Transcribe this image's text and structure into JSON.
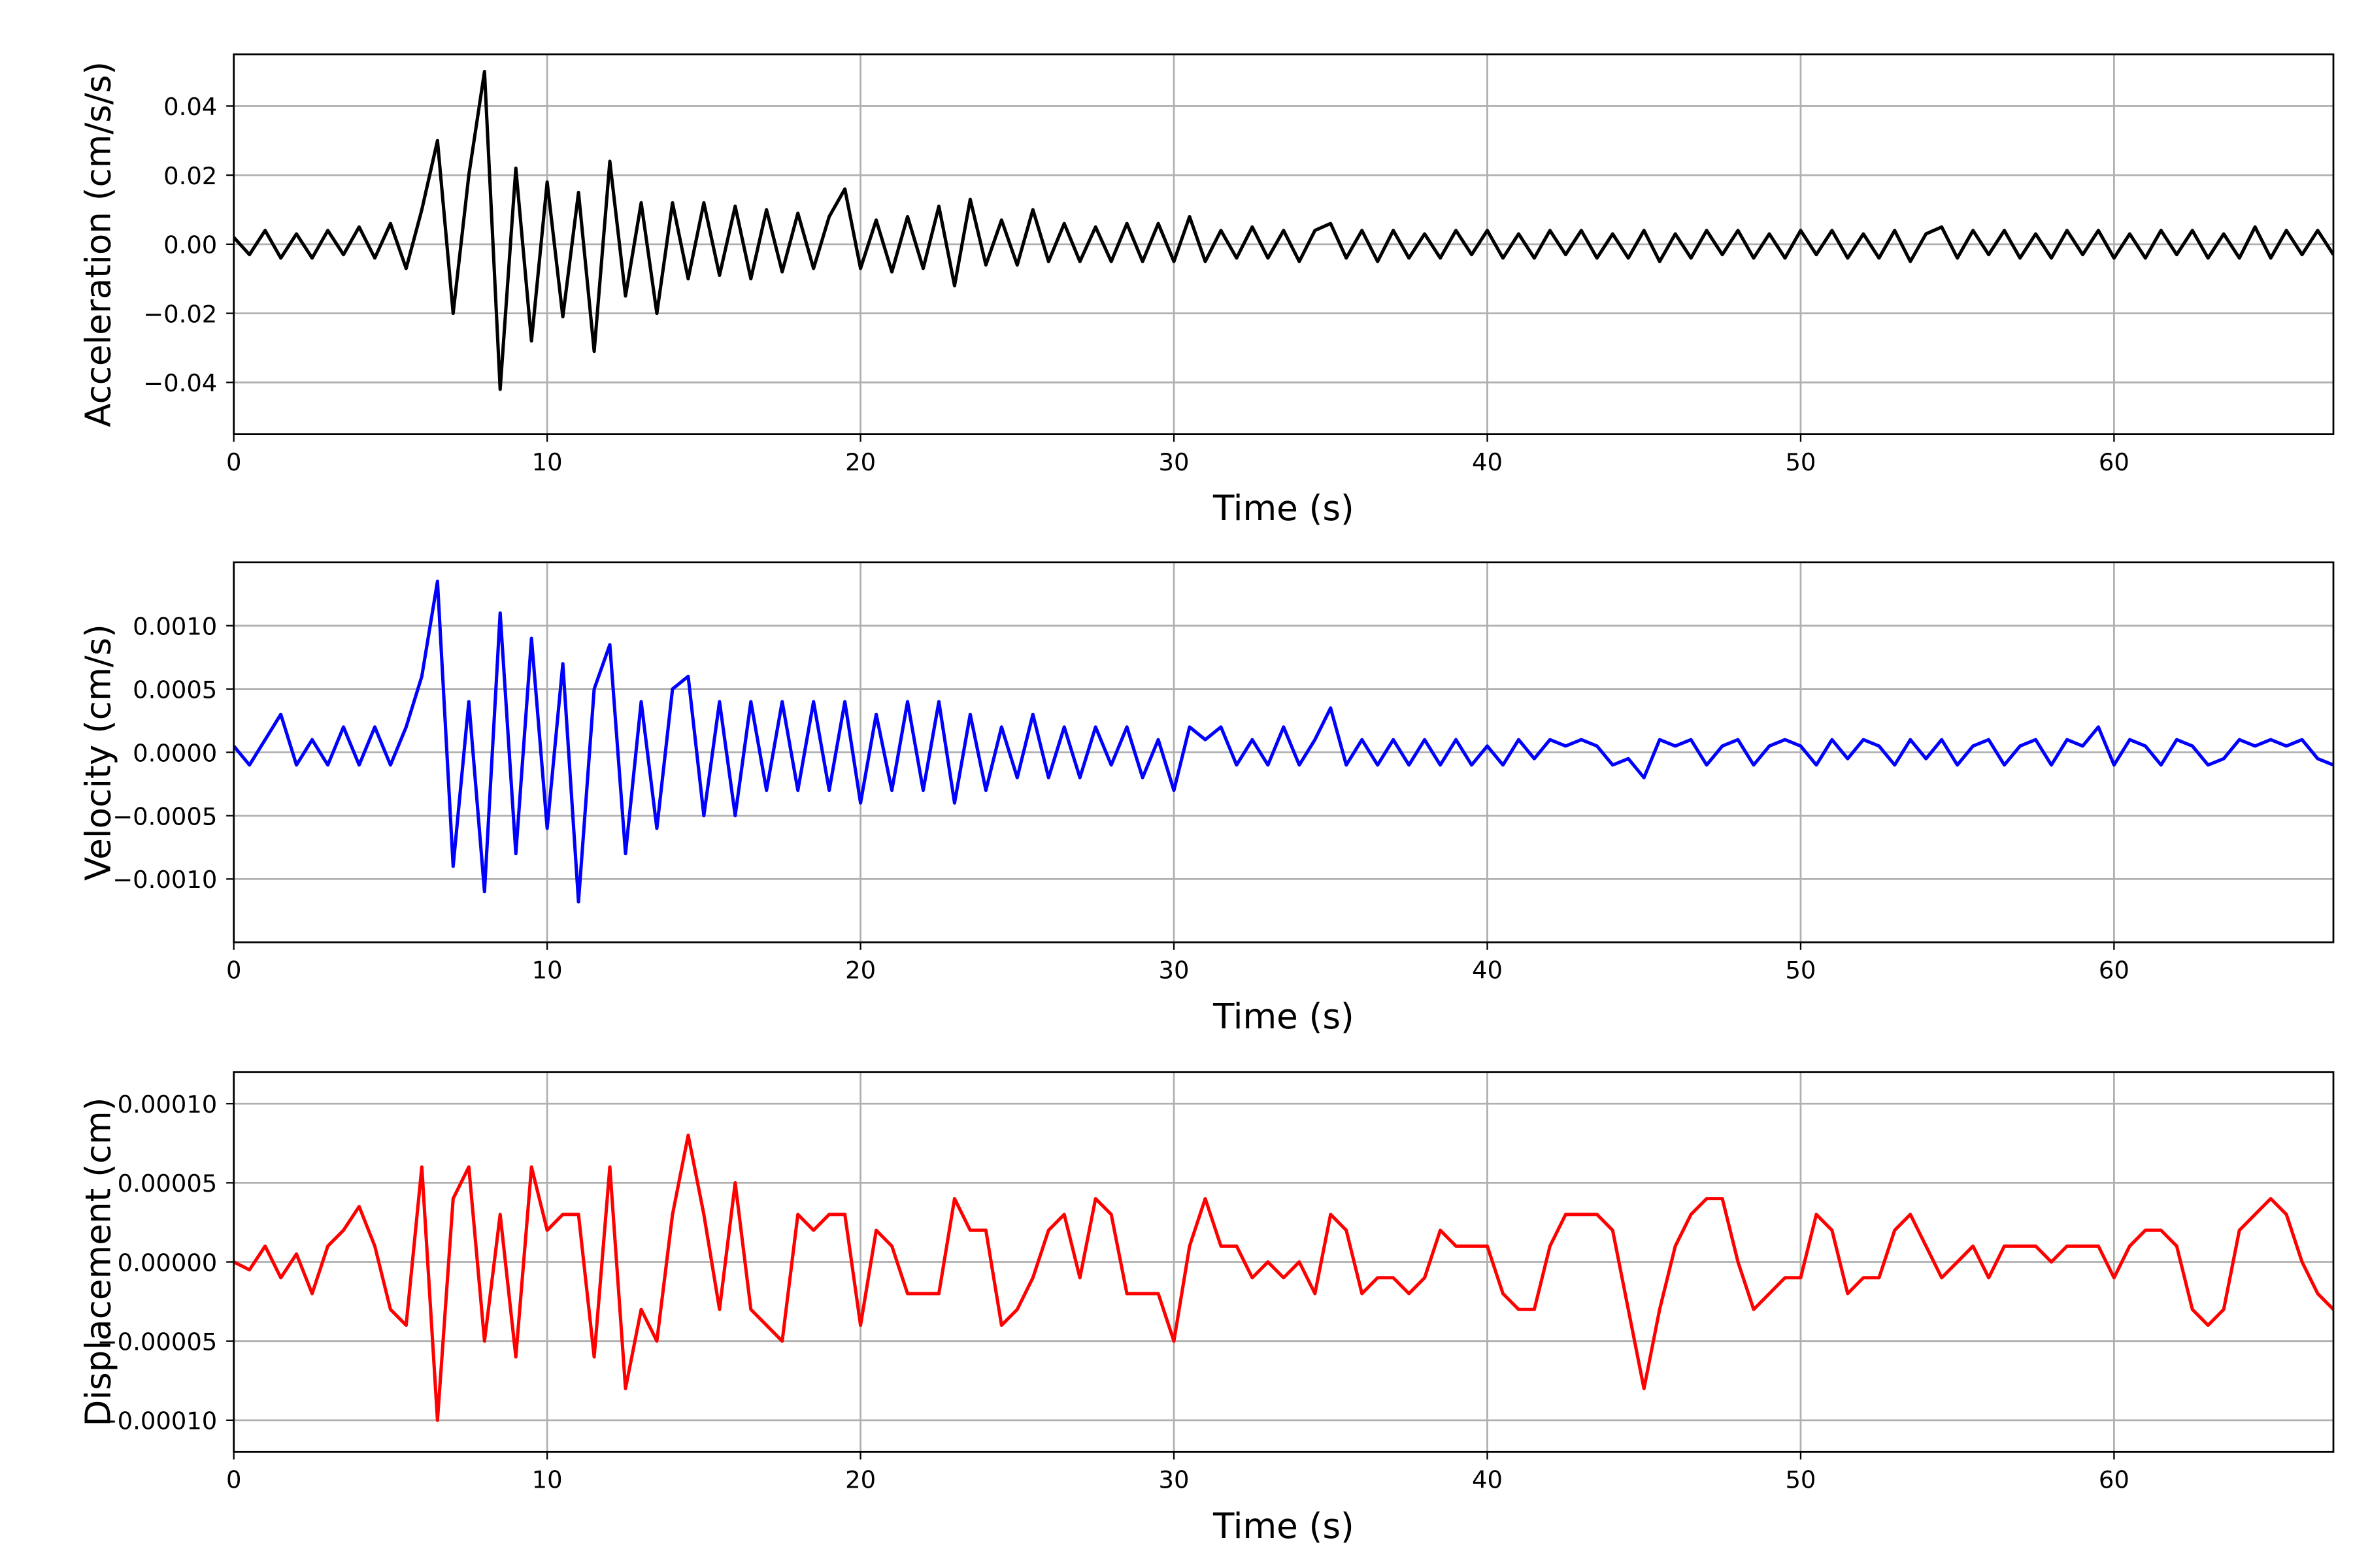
{
  "chart_data": [
    {
      "type": "line",
      "ylabel": "Acceleration (cm/s/s)",
      "xlabel": "Time (s)",
      "color": "#000000",
      "grid": true,
      "xlim": [
        0,
        67
      ],
      "xticks": [
        0,
        10,
        20,
        30,
        40,
        50,
        60
      ],
      "ylim": [
        -0.055,
        0.055
      ],
      "yticks": [
        {
          "value": -0.04,
          "label": "−0.04"
        },
        {
          "value": -0.02,
          "label": "−0.02"
        },
        {
          "value": 0,
          "label": "0.00"
        },
        0.02,
        0.04
      ],
      "x": [
        0,
        0.5,
        1,
        1.5,
        2,
        2.5,
        3,
        3.5,
        4,
        4.5,
        5,
        5.5,
        6,
        6.5,
        7,
        7.5,
        8,
        8.5,
        9,
        9.5,
        10,
        10.5,
        11,
        11.5,
        12,
        12.5,
        13,
        13.5,
        14,
        14.5,
        15,
        15.5,
        16,
        16.5,
        17,
        17.5,
        18,
        18.5,
        19,
        19.5,
        20,
        20.5,
        21,
        21.5,
        22,
        22.5,
        23,
        23.5,
        24,
        24.5,
        25,
        25.5,
        26,
        26.5,
        27,
        27.5,
        28,
        28.5,
        29,
        29.5,
        30,
        30.5,
        31,
        31.5,
        32,
        32.5,
        33,
        33.5,
        34,
        34.5,
        35,
        35.5,
        36,
        36.5,
        37,
        37.5,
        38,
        38.5,
        39,
        39.5,
        40,
        40.5,
        41,
        41.5,
        42,
        42.5,
        43,
        43.5,
        44,
        44.5,
        45,
        45.5,
        46,
        46.5,
        47,
        47.5,
        48,
        48.5,
        49,
        49.5,
        50,
        50.5,
        51,
        51.5,
        52,
        52.5,
        53,
        53.5,
        54,
        54.5,
        55,
        55.5,
        56,
        56.5,
        57,
        57.5,
        58,
        58.5,
        59,
        59.5,
        60,
        60.5,
        61,
        61.5,
        62,
        62.5,
        63,
        63.5,
        64,
        64.5,
        65,
        65.5,
        66,
        66.5,
        67
      ],
      "values": [
        0.002,
        -0.003,
        0.004,
        -0.004,
        0.003,
        -0.004,
        0.004,
        -0.003,
        0.005,
        -0.004,
        0.006,
        -0.007,
        0.01,
        0.03,
        -0.02,
        0.02,
        0.05,
        -0.042,
        0.022,
        -0.028,
        0.018,
        -0.021,
        0.015,
        -0.031,
        0.024,
        -0.015,
        0.012,
        -0.02,
        0.012,
        -0.01,
        0.012,
        -0.009,
        0.011,
        -0.01,
        0.01,
        -0.008,
        0.009,
        -0.007,
        0.008,
        0.016,
        -0.007,
        0.007,
        -0.008,
        0.008,
        -0.007,
        0.011,
        -0.012,
        0.013,
        -0.006,
        0.007,
        -0.006,
        0.01,
        -0.005,
        0.006,
        -0.005,
        0.005,
        -0.005,
        0.006,
        -0.005,
        0.006,
        -0.005,
        0.008,
        -0.005,
        0.004,
        -0.004,
        0.005,
        -0.004,
        0.004,
        -0.005,
        0.004,
        0.006,
        -0.004,
        0.004,
        -0.005,
        0.004,
        -0.004,
        0.003,
        -0.004,
        0.004,
        -0.003,
        0.004,
        -0.004,
        0.003,
        -0.004,
        0.004,
        -0.003,
        0.004,
        -0.004,
        0.003,
        -0.004,
        0.004,
        -0.005,
        0.003,
        -0.004,
        0.004,
        -0.003,
        0.004,
        -0.004,
        0.003,
        -0.004,
        0.004,
        -0.003,
        0.004,
        -0.004,
        0.003,
        -0.004,
        0.004,
        -0.005,
        0.003,
        0.005,
        -0.004,
        0.004,
        -0.003,
        0.004,
        -0.004,
        0.003,
        -0.004,
        0.004,
        -0.003,
        0.004,
        -0.004,
        0.003,
        -0.004,
        0.004,
        -0.003,
        0.004,
        -0.004,
        0.003,
        -0.004,
        0.005,
        -0.004,
        0.004,
        -0.003,
        0.004,
        -0.003
      ]
    },
    {
      "type": "line",
      "ylabel": "Velocity (cm/s)",
      "xlabel": "Time (s)",
      "color": "#0000ff",
      "grid": true,
      "xlim": [
        0,
        67
      ],
      "xticks": [
        0,
        10,
        20,
        30,
        40,
        50,
        60
      ],
      "ylim": [
        -0.0015,
        0.0015
      ],
      "yticks": [
        {
          "value": -0.001,
          "label": "−0.0010"
        },
        {
          "value": -0.0005,
          "label": "−0.0005"
        },
        {
          "value": 0,
          "label": "0.0000"
        },
        {
          "value": 0.0005,
          "label": "0.0005"
        },
        {
          "value": 0.001,
          "label": "0.0010"
        }
      ],
      "x": [
        0,
        0.5,
        1,
        1.5,
        2,
        2.5,
        3,
        3.5,
        4,
        4.5,
        5,
        5.5,
        6,
        6.5,
        7,
        7.5,
        8,
        8.5,
        9,
        9.5,
        10,
        10.5,
        11,
        11.5,
        12,
        12.5,
        13,
        13.5,
        14,
        14.5,
        15,
        15.5,
        16,
        16.5,
        17,
        17.5,
        18,
        18.5,
        19,
        19.5,
        20,
        20.5,
        21,
        21.5,
        22,
        22.5,
        23,
        23.5,
        24,
        24.5,
        25,
        25.5,
        26,
        26.5,
        27,
        27.5,
        28,
        28.5,
        29,
        29.5,
        30,
        30.5,
        31,
        31.5,
        32,
        32.5,
        33,
        33.5,
        34,
        34.5,
        35,
        35.5,
        36,
        36.5,
        37,
        37.5,
        38,
        38.5,
        39,
        39.5,
        40,
        40.5,
        41,
        41.5,
        42,
        42.5,
        43,
        43.5,
        44,
        44.5,
        45,
        45.5,
        46,
        46.5,
        47,
        47.5,
        48,
        48.5,
        49,
        49.5,
        50,
        50.5,
        51,
        51.5,
        52,
        52.5,
        53,
        53.5,
        54,
        54.5,
        55,
        55.5,
        56,
        56.5,
        57,
        57.5,
        58,
        58.5,
        59,
        59.5,
        60,
        60.5,
        61,
        61.5,
        62,
        62.5,
        63,
        63.5,
        64,
        64.5,
        65,
        65.5,
        66,
        66.5,
        67
      ],
      "values": [
        5e-05,
        -0.0001,
        0.0001,
        0.0003,
        -0.0001,
        0.0001,
        -0.0001,
        0.0002,
        -0.0001,
        0.0002,
        -0.0001,
        0.0002,
        0.0006,
        0.00135,
        -0.0009,
        0.0004,
        -0.0011,
        0.0011,
        -0.0008,
        0.0009,
        -0.0006,
        0.0007,
        -0.00118,
        0.0005,
        0.00085,
        -0.0008,
        0.0004,
        -0.0006,
        0.0005,
        0.0006,
        -0.0005,
        0.0004,
        -0.0005,
        0.0004,
        -0.0003,
        0.0004,
        -0.0003,
        0.0004,
        -0.0003,
        0.0004,
        -0.0004,
        0.0003,
        -0.0003,
        0.0004,
        -0.0003,
        0.0004,
        -0.0004,
        0.0003,
        -0.0003,
        0.0002,
        -0.0002,
        0.0003,
        -0.0002,
        0.0002,
        -0.0002,
        0.0002,
        -0.0001,
        0.0002,
        -0.0002,
        0.0001,
        -0.0003,
        0.0002,
        0.0001,
        0.0002,
        -0.0001,
        0.0001,
        -0.0001,
        0.0002,
        -0.0001,
        0.0001,
        0.00035,
        -0.0001,
        0.0001,
        -0.0001,
        0.0001,
        -0.0001,
        0.0001,
        -0.0001,
        0.0001,
        -0.0001,
        5e-05,
        -0.0001,
        0.0001,
        -5e-05,
        0.0001,
        5e-05,
        0.0001,
        5e-05,
        -0.0001,
        -5e-05,
        -0.0002,
        0.0001,
        5e-05,
        0.0001,
        -0.0001,
        5e-05,
        0.0001,
        -0.0001,
        5e-05,
        0.0001,
        5e-05,
        -0.0001,
        0.0001,
        -5e-05,
        0.0001,
        5e-05,
        -0.0001,
        0.0001,
        -5e-05,
        0.0001,
        -0.0001,
        5e-05,
        0.0001,
        -0.0001,
        5e-05,
        0.0001,
        -0.0001,
        0.0001,
        5e-05,
        0.0002,
        -0.0001,
        0.0001,
        5e-05,
        -0.0001,
        0.0001,
        5e-05,
        -0.0001,
        -5e-05,
        0.0001,
        5e-05,
        0.0001,
        5e-05,
        0.0001,
        -5e-05,
        -0.0001
      ]
    },
    {
      "type": "line",
      "ylabel": "Displacement (cm)",
      "xlabel": "Time (s)",
      "color": "#ff0000",
      "grid": true,
      "xlim": [
        0,
        67
      ],
      "xticks": [
        0,
        10,
        20,
        30,
        40,
        50,
        60
      ],
      "ylim": [
        -0.00012,
        0.00012
      ],
      "yticks": [
        {
          "value": -0.0001,
          "label": "−0.00010"
        },
        {
          "value": -5e-05,
          "label": "−0.00005"
        },
        {
          "value": 0,
          "label": "0.00000"
        },
        {
          "value": 5e-05,
          "label": "0.00005"
        },
        {
          "value": 0.0001,
          "label": "0.00010"
        }
      ],
      "x": [
        0,
        0.5,
        1,
        1.5,
        2,
        2.5,
        3,
        3.5,
        4,
        4.5,
        5,
        5.5,
        6,
        6.5,
        7,
        7.5,
        8,
        8.5,
        9,
        9.5,
        10,
        10.5,
        11,
        11.5,
        12,
        12.5,
        13,
        13.5,
        14,
        14.5,
        15,
        15.5,
        16,
        16.5,
        17,
        17.5,
        18,
        18.5,
        19,
        19.5,
        20,
        20.5,
        21,
        21.5,
        22,
        22.5,
        23,
        23.5,
        24,
        24.5,
        25,
        25.5,
        26,
        26.5,
        27,
        27.5,
        28,
        28.5,
        29,
        29.5,
        30,
        30.5,
        31,
        31.5,
        32,
        32.5,
        33,
        33.5,
        34,
        34.5,
        35,
        35.5,
        36,
        36.5,
        37,
        37.5,
        38,
        38.5,
        39,
        39.5,
        40,
        40.5,
        41,
        41.5,
        42,
        42.5,
        43,
        43.5,
        44,
        44.5,
        45,
        45.5,
        46,
        46.5,
        47,
        47.5,
        48,
        48.5,
        49,
        49.5,
        50,
        50.5,
        51,
        51.5,
        52,
        52.5,
        53,
        53.5,
        54,
        54.5,
        55,
        55.5,
        56,
        56.5,
        57,
        57.5,
        58,
        58.5,
        59,
        59.5,
        60,
        60.5,
        61,
        61.5,
        62,
        62.5,
        63,
        63.5,
        64,
        64.5,
        65,
        65.5,
        66,
        66.5,
        67
      ],
      "values": [
        0,
        -5e-06,
        1e-05,
        -1e-05,
        5e-06,
        -2e-05,
        1e-05,
        2e-05,
        3.5e-05,
        1e-05,
        -3e-05,
        -4e-05,
        6e-05,
        -0.0001,
        4e-05,
        6e-05,
        -5e-05,
        3e-05,
        -6e-05,
        6e-05,
        2e-05,
        3e-05,
        3e-05,
        -6e-05,
        6e-05,
        -8e-05,
        -3e-05,
        -5e-05,
        3e-05,
        8e-05,
        3e-05,
        -3e-05,
        5e-05,
        -3e-05,
        -4e-05,
        -5e-05,
        3e-05,
        2e-05,
        3e-05,
        3e-05,
        -4e-05,
        2e-05,
        1e-05,
        -2e-05,
        -2e-05,
        -2e-05,
        4e-05,
        2e-05,
        2e-05,
        -4e-05,
        -3e-05,
        -1e-05,
        2e-05,
        3e-05,
        -1e-05,
        4e-05,
        3e-05,
        -2e-05,
        -2e-05,
        -2e-05,
        -5e-05,
        1e-05,
        4e-05,
        1e-05,
        1e-05,
        -1e-05,
        0,
        -1e-05,
        0,
        -2e-05,
        3e-05,
        2e-05,
        -2e-05,
        -1e-05,
        -1e-05,
        -2e-05,
        -1e-05,
        2e-05,
        1e-05,
        1e-05,
        1e-05,
        -2e-05,
        -3e-05,
        -3e-05,
        1e-05,
        3e-05,
        3e-05,
        3e-05,
        2e-05,
        -3e-05,
        -8e-05,
        -3e-05,
        1e-05,
        3e-05,
        4e-05,
        4e-05,
        0,
        -3e-05,
        -2e-05,
        -1e-05,
        -1e-05,
        3e-05,
        2e-05,
        -2e-05,
        -1e-05,
        -1e-05,
        2e-05,
        3e-05,
        1e-05,
        -1e-05,
        0,
        1e-05,
        -1e-05,
        1e-05,
        1e-05,
        1e-05,
        0,
        1e-05,
        1e-05,
        1e-05,
        -1e-05,
        1e-05,
        2e-05,
        2e-05,
        1e-05,
        -3e-05,
        -4e-05,
        -3e-05,
        2e-05,
        3e-05,
        4e-05,
        3e-05,
        0,
        -2e-05,
        -3e-05
      ]
    }
  ]
}
